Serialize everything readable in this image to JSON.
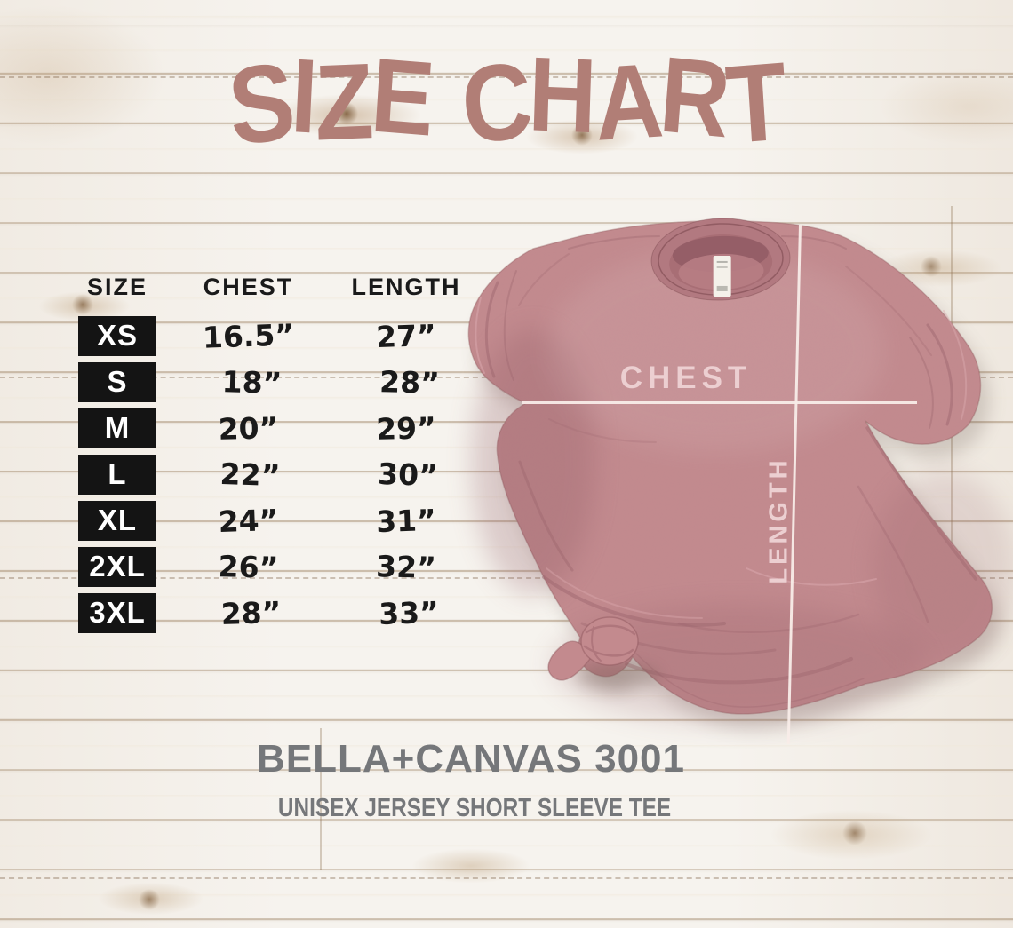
{
  "title": "SIZE CHART",
  "size_table": {
    "headers": [
      "SIZE",
      "CHEST",
      "LENGTH"
    ],
    "rows": [
      {
        "size": "XS",
        "chest": "16.5”",
        "length": "27”"
      },
      {
        "size": "S",
        "chest": "18”",
        "length": "28”"
      },
      {
        "size": "M",
        "chest": "20”",
        "length": "29”"
      },
      {
        "size": "L",
        "chest": "22”",
        "length": "30”"
      },
      {
        "size": "XL",
        "chest": "24”",
        "length": "31”"
      },
      {
        "size": "2XL",
        "chest": "26”",
        "length": "32”"
      },
      {
        "size": "3XL",
        "chest": "28”",
        "length": "33”"
      }
    ]
  },
  "shirt": {
    "chest_label": "CHEST",
    "length_label": "LENGTH"
  },
  "footer": {
    "brand": "BELLA+CANVAS 3001",
    "product": "UNISEX JERSEY SHORT SLEEVE TEE"
  },
  "colors": {
    "title": "#b17e76",
    "table-text": "#1a1a1a",
    "chip-bg": "#141414",
    "chip-text": "#ffffff",
    "shirt-base": "#c38a8e",
    "shirt-dark": "#b27980",
    "shirt-deep": "#9c646c",
    "collar-hole": "#a86e75",
    "measure-line": "#f8ece8",
    "shirt-label": "#eccfd1",
    "footer-text": "#75777a",
    "tag": "#f4f1ea",
    "wood-base": "#f6f3ee"
  },
  "chart_data": {
    "type": "table",
    "title": "SIZE CHART",
    "columns": [
      "SIZE",
      "CHEST",
      "LENGTH"
    ],
    "units": "inches",
    "rows": [
      [
        "XS",
        16.5,
        27
      ],
      [
        "S",
        18,
        28
      ],
      [
        "M",
        20,
        29
      ],
      [
        "L",
        22,
        30
      ],
      [
        "XL",
        24,
        31
      ],
      [
        "2XL",
        26,
        32
      ],
      [
        "3XL",
        28,
        33
      ]
    ],
    "notes": "Chest and length measurement guides drawn over t-shirt photo"
  }
}
